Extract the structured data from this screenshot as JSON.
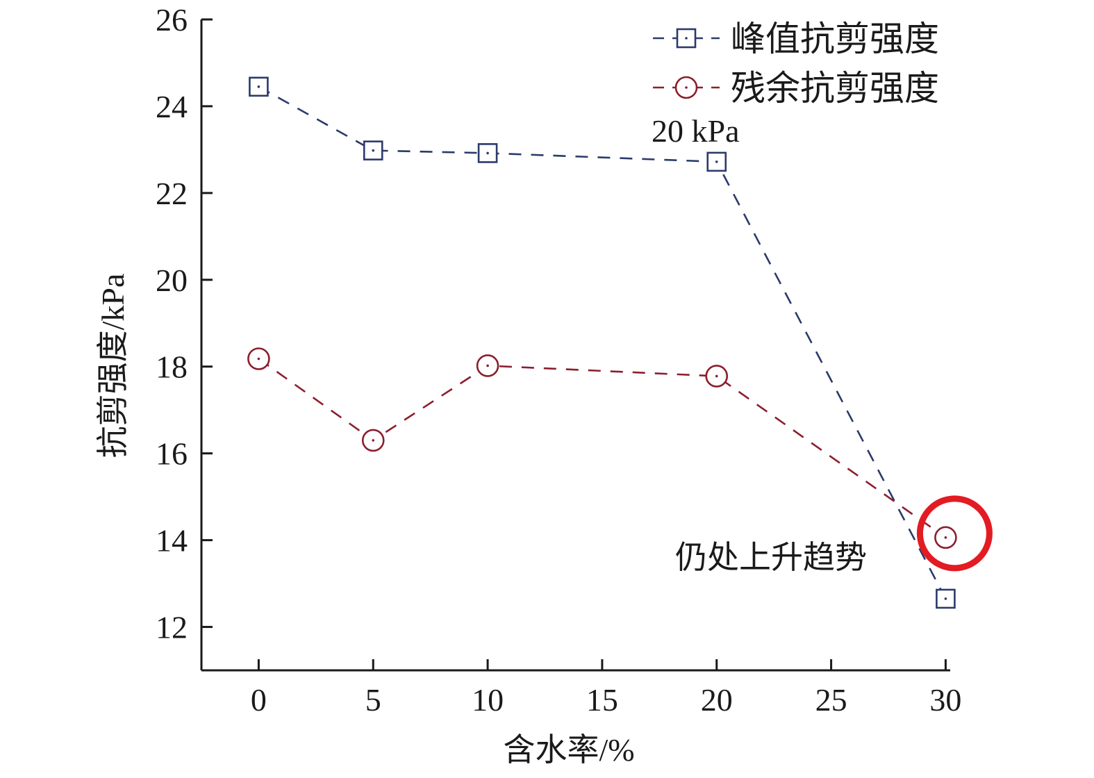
{
  "chart_data": {
    "type": "line",
    "xlabel": "含水率/%",
    "ylabel": "抗剪强度/kPa",
    "xlim": [
      -2.5,
      30.2
    ],
    "ylim": [
      11,
      26
    ],
    "xticks": [
      0,
      5,
      10,
      15,
      20,
      25,
      30
    ],
    "yticks": [
      12,
      14,
      16,
      18,
      20,
      22,
      24,
      26
    ],
    "grid": false,
    "legend_position": "top-right",
    "series": [
      {
        "name": "峰值抗剪强度",
        "marker": "square",
        "line_style": "dashed",
        "color": "#2b3a6b",
        "x": [
          0,
          5,
          10,
          20,
          30
        ],
        "y": [
          24.45,
          22.98,
          22.92,
          22.72,
          12.65
        ]
      },
      {
        "name": "残余抗剪强度",
        "marker": "circle",
        "line_style": "dashed",
        "color": "#8b1e2d",
        "x": [
          0,
          5,
          10,
          20,
          30
        ],
        "y": [
          18.18,
          16.3,
          18.02,
          17.78,
          14.06
        ]
      }
    ],
    "annotations": [
      {
        "text": "20 kPa",
        "anchor": "below-legend"
      },
      {
        "text": "仍处上升趋势",
        "anchor": "near-last-point",
        "x": 30,
        "y": 14.06,
        "highlight_color": "#e31b23"
      }
    ]
  }
}
